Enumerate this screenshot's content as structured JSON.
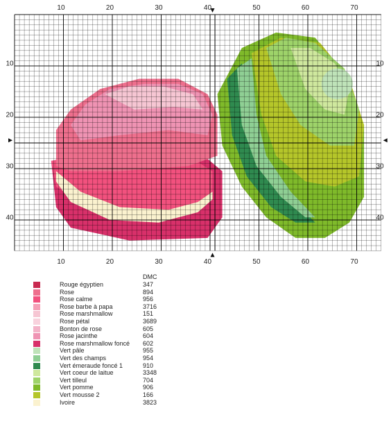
{
  "grid": {
    "cols": 75,
    "rows": 46,
    "top_axis_labels": [
      "10",
      "20",
      "30",
      "40",
      "50",
      "60",
      "70"
    ],
    "bottom_axis_labels": [
      "10",
      "20",
      "30",
      "40",
      "50",
      "60",
      "70"
    ],
    "left_axis_labels": [
      "10",
      "20",
      "30",
      "40"
    ],
    "right_axis_labels": [
      "10",
      "20",
      "30",
      "40"
    ],
    "line_color": "#000000",
    "center_marker": "▲"
  },
  "legend": {
    "header": "DMC",
    "items": [
      {
        "name": "Rouge égyptien",
        "code": "347",
        "color": "#c8294f"
      },
      {
        "name": "Rose",
        "code": "894",
        "color": "#ee6f8d"
      },
      {
        "name": "Rose calme",
        "code": "956",
        "color": "#f2517e"
      },
      {
        "name": "Rose barbe à papa",
        "code": "3716",
        "color": "#f5a0b7"
      },
      {
        "name": "Rose marshmallow",
        "code": "151",
        "color": "#f6c6d3"
      },
      {
        "name": "Rose pétal",
        "code": "3689",
        "color": "#f8d2dd"
      },
      {
        "name": "Bonton de rose",
        "code": "605",
        "color": "#f3b3c8"
      },
      {
        "name": "Rose jacinthe",
        "code": "604",
        "color": "#ef93b3"
      },
      {
        "name": "Rose marshmallow foncé",
        "code": "602",
        "color": "#d8306a"
      },
      {
        "name": "Vert pâle",
        "code": "955",
        "color": "#bfe3b9"
      },
      {
        "name": "Vert des champs",
        "code": "954",
        "color": "#8fcf94"
      },
      {
        "name": "Vert émeraude foncé 1",
        "code": "910",
        "color": "#2f8a4f"
      },
      {
        "name": "Vert coeur de laitue",
        "code": "3348",
        "color": "#cfe89e"
      },
      {
        "name": "Vert tilleul",
        "code": "704",
        "color": "#9ed36a"
      },
      {
        "name": "Vert pomme",
        "code": "906",
        "color": "#7fba2a"
      },
      {
        "name": "Vert mousse 2",
        "code": "166",
        "color": "#b5c62a"
      },
      {
        "name": "Ivoire",
        "code": "3823",
        "color": "#fbf2cf"
      }
    ]
  }
}
